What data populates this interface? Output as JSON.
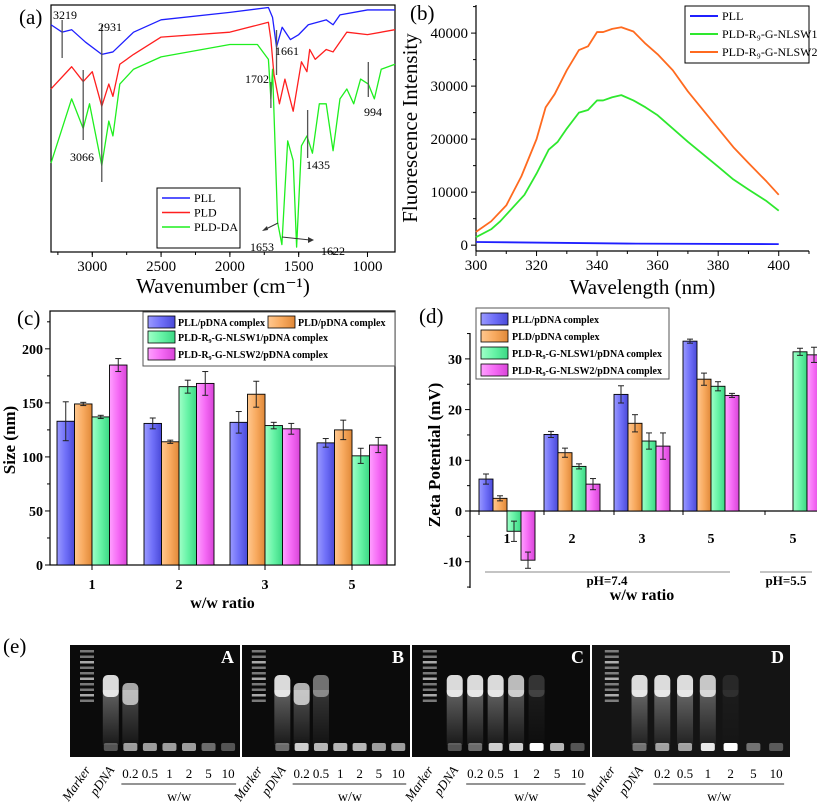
{
  "figure": {
    "panel_labels": [
      "(a)",
      "(b)",
      "(c)",
      "(d)",
      "(e)"
    ]
  },
  "chart_data": [
    {
      "type": "line",
      "panel": "(a)",
      "xlabel": "Wavenumber (cm⁻¹)",
      "ylabel": "",
      "xlim": [
        3300,
        800
      ],
      "ylim": [
        0,
        100
      ],
      "xticks": [
        "3000",
        "2500",
        "2000",
        "1500",
        "1000"
      ],
      "legend": "bottom-center",
      "series": [
        {
          "name": "PLL",
          "color": "#1f1fff",
          "points": [
            [
              3300,
              92
            ],
            [
              3219,
              89
            ],
            [
              3150,
              90
            ],
            [
              3050,
              85
            ],
            [
              2931,
              80
            ],
            [
              2850,
              81
            ],
            [
              2700,
              89
            ],
            [
              2500,
              94
            ],
            [
              2000,
              97
            ],
            [
              1720,
              99
            ],
            [
              1690,
              95
            ],
            [
              1661,
              83
            ],
            [
              1620,
              91
            ],
            [
              1560,
              86
            ],
            [
              1500,
              88
            ],
            [
              1430,
              92
            ],
            [
              1300,
              94
            ],
            [
              1250,
              92
            ],
            [
              1200,
              96
            ],
            [
              1000,
              98
            ],
            [
              800,
              98
            ]
          ]
        },
        {
          "name": "PLD",
          "color": "#ff1f1f",
          "points": [
            [
              3300,
              66
            ],
            [
              3150,
              75
            ],
            [
              3066,
              69
            ],
            [
              3000,
              73
            ],
            [
              2931,
              59
            ],
            [
              2880,
              68
            ],
            [
              2850,
              63
            ],
            [
              2800,
              76
            ],
            [
              2700,
              80
            ],
            [
              2500,
              87
            ],
            [
              2000,
              89
            ],
            [
              1720,
              93
            ],
            [
              1702,
              86
            ],
            [
              1680,
              72
            ],
            [
              1640,
              60
            ],
            [
              1600,
              70
            ],
            [
              1540,
              57
            ],
            [
              1480,
              77
            ],
            [
              1440,
              73
            ],
            [
              1420,
              82
            ],
            [
              1380,
              78
            ],
            [
              1300,
              82
            ],
            [
              1250,
              81
            ],
            [
              1150,
              89
            ],
            [
              1000,
              88
            ],
            [
              800,
              90
            ]
          ]
        },
        {
          "name": "PLD-DA",
          "color": "#1fef1f",
          "points": [
            [
              3300,
              36
            ],
            [
              3150,
              62
            ],
            [
              3066,
              50
            ],
            [
              3020,
              60
            ],
            [
              2931,
              35
            ],
            [
              2880,
              53
            ],
            [
              2850,
              47
            ],
            [
              2800,
              68
            ],
            [
              2700,
              74
            ],
            [
              2500,
              79
            ],
            [
              2000,
              84
            ],
            [
              1800,
              84
            ],
            [
              1720,
              78
            ],
            [
              1702,
              62
            ],
            [
              1690,
              74
            ],
            [
              1653,
              12
            ],
            [
              1622,
              3
            ],
            [
              1580,
              45
            ],
            [
              1540,
              37
            ],
            [
              1515,
              2
            ],
            [
              1480,
              43
            ],
            [
              1440,
              47
            ],
            [
              1400,
              40
            ],
            [
              1350,
              60
            ],
            [
              1300,
              60
            ],
            [
              1250,
              41
            ],
            [
              1200,
              62
            ],
            [
              1150,
              66
            ],
            [
              1100,
              60
            ],
            [
              1050,
              70
            ],
            [
              994,
              68
            ],
            [
              950,
              62
            ],
            [
              900,
              74
            ],
            [
              800,
              76
            ]
          ]
        }
      ],
      "annotations": [
        "3219",
        "2931",
        "3066",
        "1702",
        "1661",
        "1435",
        "994",
        "1653",
        "1622"
      ]
    },
    {
      "type": "line",
      "panel": "(b)",
      "xlabel": "Wavelength (nm)",
      "ylabel": "Fluorescence Intensity",
      "xlim": [
        300,
        410
      ],
      "ylim": [
        -1100,
        45300
      ],
      "xticks": [
        "300",
        "320",
        "340",
        "360",
        "380",
        "400"
      ],
      "yticks": [
        "0",
        "10000",
        "20000",
        "30000",
        "40000"
      ],
      "legend": "top-right",
      "series": [
        {
          "name": "PLL",
          "color": "#1f1fff",
          "points": [
            [
              300,
              600
            ],
            [
              350,
              300
            ],
            [
              400,
              200
            ]
          ]
        },
        {
          "name": "PLD-R₉-G-NLSW1",
          "color": "#2ee82e",
          "points": [
            [
              300,
              1500
            ],
            [
              305,
              3000
            ],
            [
              308,
              4500
            ],
            [
              312,
              7000
            ],
            [
              316,
              9500
            ],
            [
              320,
              13500
            ],
            [
              324,
              18000
            ],
            [
              327,
              19500
            ],
            [
              330,
              22000
            ],
            [
              334,
              25000
            ],
            [
              337,
              25500
            ],
            [
              340,
              27300
            ],
            [
              342,
              27300
            ],
            [
              345,
              27900
            ],
            [
              348,
              28300
            ],
            [
              352,
              27300
            ],
            [
              356,
              26000
            ],
            [
              360,
              24500
            ],
            [
              370,
              19500
            ],
            [
              380,
              14800
            ],
            [
              385,
              12400
            ],
            [
              390,
              10500
            ],
            [
              396,
              8300
            ],
            [
              400,
              6500
            ]
          ]
        },
        {
          "name": "PLD-R₉-G-NLSW2",
          "color": "#ff6a1f",
          "points": [
            [
              300,
              2500
            ],
            [
              305,
              4500
            ],
            [
              310,
              7500
            ],
            [
              315,
              13000
            ],
            [
              320,
              20000
            ],
            [
              323,
              26000
            ],
            [
              326,
              28500
            ],
            [
              330,
              33000
            ],
            [
              334,
              36800
            ],
            [
              337,
              37500
            ],
            [
              340,
              40200
            ],
            [
              342,
              40200
            ],
            [
              345,
              40800
            ],
            [
              348,
              41100
            ],
            [
              352,
              40300
            ],
            [
              356,
              38000
            ],
            [
              360,
              36000
            ],
            [
              365,
              33000
            ],
            [
              370,
              29000
            ],
            [
              380,
              22000
            ],
            [
              385,
              18500
            ],
            [
              390,
              15500
            ],
            [
              396,
              12000
            ],
            [
              400,
              9500
            ]
          ]
        }
      ]
    },
    {
      "type": "bar",
      "panel": "(c)",
      "xlabel": "w/w ratio",
      "ylabel": "Size (nm)",
      "ylim": [
        0,
        235
      ],
      "yticks": [
        "0",
        "50",
        "100",
        "150",
        "200"
      ],
      "categories": [
        "1",
        "2",
        "3",
        "5"
      ],
      "legend": "top-right",
      "series": [
        {
          "name": "PLL/pDNA complex",
          "color": "#6f6ff8",
          "values": [
            133,
            131,
            132,
            113
          ],
          "errors": [
            18,
            5,
            10,
            4
          ]
        },
        {
          "name": "PLD/pDNA complex",
          "color": "#f8aa5f",
          "values": [
            149,
            114,
            158,
            125
          ],
          "errors": [
            1.5,
            1.5,
            12,
            9
          ]
        },
        {
          "name": "PLD-R₉-G-NLSW1/pDNA complex",
          "color": "#66f3a6",
          "values": [
            137,
            165,
            129,
            101
          ],
          "errors": [
            1.5,
            6,
            3,
            7
          ]
        },
        {
          "name": "PLD-R₉-G-NLSW2/pDNA complex",
          "color": "#f56af5",
          "values": [
            185,
            168,
            126,
            111
          ],
          "errors": [
            6,
            11,
            5,
            7
          ]
        }
      ]
    },
    {
      "type": "bar",
      "panel": "(d)",
      "xlabel": "w/w ratio",
      "ylabel": "Zeta Potential (mV)",
      "ylim": [
        -15,
        35
      ],
      "yticks": [
        "-10",
        "0",
        "10",
        "20",
        "30"
      ],
      "categories": [
        "1",
        "2",
        "3",
        "5",
        "5"
      ],
      "groups": [
        {
          "label": "pH=7.4",
          "categories": 4
        },
        {
          "label": "pH=5.5",
          "categories": 1
        }
      ],
      "legend": "top-left",
      "series": [
        {
          "name": "PLL/pDNA complex",
          "color": "#6f6ff8",
          "values": [
            6.3,
            15.1,
            23.0,
            33.5,
            null
          ],
          "errors": [
            1.0,
            0.6,
            1.7,
            0.4,
            null
          ]
        },
        {
          "name": "PLD/pDNA complex",
          "color": "#f8aa5f",
          "values": [
            2.5,
            11.5,
            17.3,
            26.0,
            null
          ],
          "errors": [
            0.5,
            0.9,
            1.7,
            1.2,
            null
          ]
        },
        {
          "name": "PLD-R₉-G-NLSW1/pDNA complex",
          "color": "#66f3a6",
          "values": [
            -4.0,
            8.8,
            13.8,
            24.6,
            31.4
          ],
          "errors": [
            2.0,
            0.5,
            1.6,
            0.9,
            0.7
          ]
        },
        {
          "name": "PLD-R₉-G-NLSW2/pDNA complex",
          "color": "#f56af5",
          "values": [
            -9.7,
            5.3,
            12.8,
            22.8,
            30.8
          ],
          "errors": [
            1.6,
            1.1,
            2.6,
            0.4,
            1.5
          ]
        }
      ]
    },
    {
      "type": "gel",
      "panel": "(e)",
      "lane_labels": [
        "Marker",
        "pDNA",
        "0.2",
        "0.5",
        "1",
        "2",
        "5",
        "10"
      ],
      "group_label": "w/w",
      "panels": [
        {
          "letter": "A",
          "free_dna": [
            1,
            0.75,
            0,
            0,
            0,
            0,
            0
          ],
          "well": [
            0.3,
            0.6,
            0.6,
            0.6,
            0.6,
            0.4,
            0.3
          ]
        },
        {
          "letter": "B",
          "free_dna": [
            1,
            0.8,
            0.5,
            0,
            0,
            0,
            0
          ],
          "well": [
            0.4,
            0.8,
            0.7,
            0.7,
            0.7,
            0.6,
            0.6
          ]
        },
        {
          "letter": "C",
          "free_dna": [
            1,
            1,
            1,
            0.85,
            0.2,
            0,
            0
          ],
          "well": [
            0.3,
            0.4,
            0.8,
            0.8,
            1,
            0.7,
            0.3
          ]
        },
        {
          "letter": "D",
          "free_dna": [
            1,
            1,
            1,
            0.9,
            0.1,
            0,
            0
          ],
          "well": [
            0.4,
            0.6,
            0.6,
            0.9,
            1,
            0.4,
            0.3
          ]
        }
      ]
    }
  ]
}
